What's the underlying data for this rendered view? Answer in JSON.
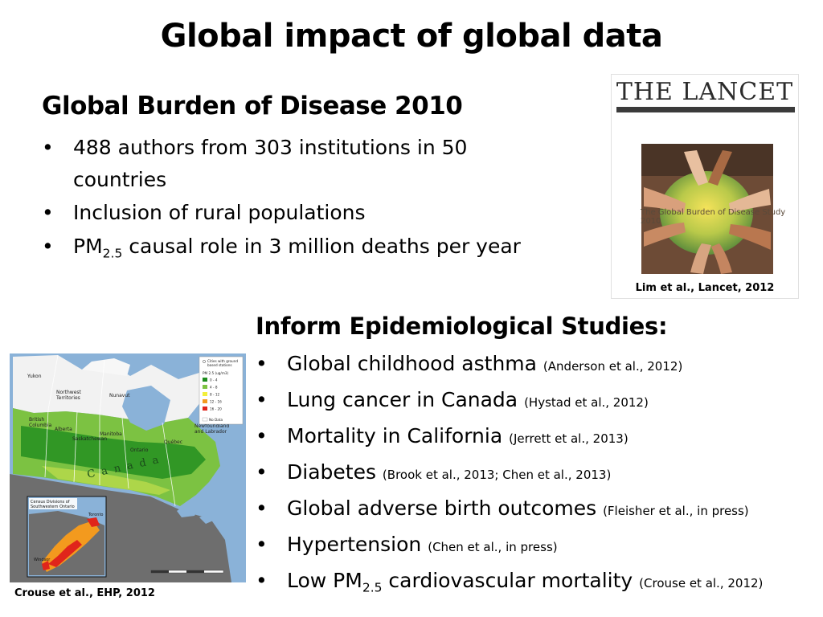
{
  "slide": {
    "title": "Global impact of global data"
  },
  "gbd": {
    "heading": "Global Burden of Disease 2010",
    "bullets": [
      {
        "line1": "488 authors from 303 institutions in 50",
        "line2": "countries"
      },
      {
        "text": "Inclusion of rural populations"
      },
      {
        "pre": "PM",
        "sub": "2.5",
        "post": " causal role in 3 million deaths per year"
      }
    ]
  },
  "lancet_image": {
    "journal_name": "THE LANCET",
    "cover_title": "The Global Burden of Disease Study 2010",
    "caption": "Lim et al., Lancet, 2012"
  },
  "epi": {
    "heading": "Inform Epidemiological Studies:",
    "items": [
      {
        "text": "Global childhood asthma ",
        "cite": "(Anderson et al., 2012)"
      },
      {
        "text": "Lung cancer in Canada ",
        "cite": "(Hystad et al., 2012)"
      },
      {
        "text": "Mortality in California ",
        "cite": "(Jerrett et al., 2013)"
      },
      {
        "text": "Diabetes ",
        "cite": "(Brook et al., 2013; Chen et al., 2013)"
      },
      {
        "text": "Global adverse birth outcomes ",
        "cite": "(Fleisher et al., in press)"
      },
      {
        "text": "Hypertension ",
        "cite": "(Chen et al., in press)"
      },
      {
        "pre": "Low PM",
        "sub": "2.5",
        "post": " cardiovascular mortality ",
        "cite": "(Crouse et al., 2012)"
      }
    ]
  },
  "map_image": {
    "caption": "Crouse et al., EHP, 2012",
    "labels": {
      "yukon": "Yukon",
      "nwt1": "Northwest",
      "nwt2": "Territories",
      "nunavut": "Nunavut",
      "bc1": "British",
      "bc2": "Columbia",
      "alberta": "Alberta",
      "sask": "Saskatchewan",
      "manitoba": "Manitoba",
      "ontario": "Ontario",
      "quebec": "Québec",
      "nfl1": "Newfoundland",
      "nfl2": "and Labrador",
      "canada": "C a n a d a",
      "inset_title1": "Census Divisions of",
      "inset_title2": "Southwestern Ontario",
      "toronto": "Toronto",
      "windsor": "Windsor",
      "legend_cities1": "Cities with ground",
      "legend_cities2": "based stations",
      "legend_pm": "PM 2.5 (ug/m3)",
      "no_data": "No Data"
    },
    "legend": [
      {
        "label": "0 - 4",
        "color": "#1e8c1e"
      },
      {
        "label": "4 - 8",
        "color": "#7cc242"
      },
      {
        "label": "8 - 12",
        "color": "#f2ef3a"
      },
      {
        "label": "12 - 16",
        "color": "#f39a1e"
      },
      {
        "label": "16 - 20",
        "color": "#e0251b"
      }
    ],
    "colors": {
      "ocean": "#8ab2d8",
      "land_north": "#f2f2f2",
      "us": "#6e6e6e"
    }
  }
}
